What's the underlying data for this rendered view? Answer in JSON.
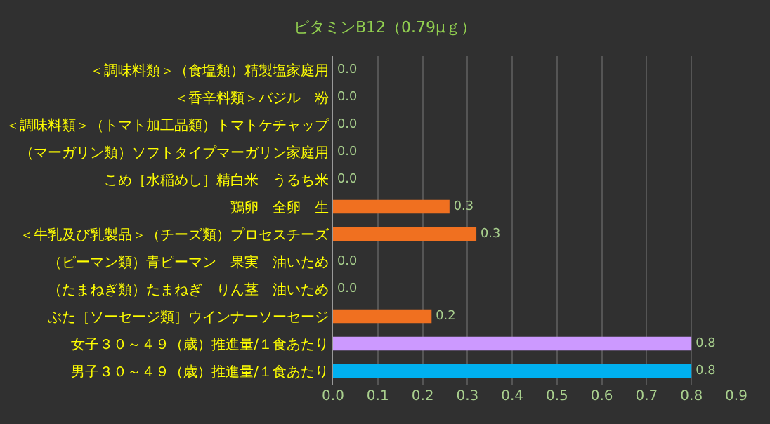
{
  "chart_data": {
    "type": "bar",
    "orientation": "horizontal",
    "title": "ビタミンB12（0.79μｇ）",
    "categories": [
      "＜調味料類＞（食塩類）精製塩家庭用",
      "＜香辛料類＞バジル　粉",
      "＜調味料類＞（トマト加工品類）トマトケチャップ",
      "（マーガリン類）ソフトタイプマーガリン家庭用",
      "こめ［水稲めし］精白米　うるち米",
      "鶏卵　全卵　生",
      "＜牛乳及び乳製品＞（チーズ類）プロセスチーズ",
      "（ピーマン類）青ピーマン　果実　油いため",
      "（たまねぎ類）たまねぎ　りん茎　油いため",
      "ぶた［ソーセージ類］ウインナーソーセージ",
      "女子３０～４９（歳）推進量/１食あたり",
      "男子３０～４９（歳）推進量/１食あたり"
    ],
    "values": [
      0,
      0,
      0,
      0,
      0,
      0.26,
      0.32,
      0,
      0,
      0.22,
      0.8,
      0.8
    ],
    "value_labels": [
      "0.0",
      "0.0",
      "0.0",
      "0.0",
      "0.0",
      "0.3",
      "0.3",
      "0.0",
      "0.0",
      "0.2",
      "0.8",
      "0.8"
    ],
    "colors": [
      "#f07020",
      "#f07020",
      "#f07020",
      "#f07020",
      "#f07020",
      "#f07020",
      "#f07020",
      "#f07020",
      "#f07020",
      "#f07020",
      "#cc99ff",
      "#00b0f0"
    ],
    "xlim": [
      0,
      0.9
    ],
    "xticks": [
      {
        "value": 0,
        "label": "0.0"
      },
      {
        "value": 0.1,
        "label": "0.1"
      },
      {
        "value": 0.2,
        "label": "0.2"
      },
      {
        "value": 0.3,
        "label": "0.3"
      },
      {
        "value": 0.4,
        "label": "0.4"
      },
      {
        "value": 0.5,
        "label": "0.5"
      },
      {
        "value": 0.6,
        "label": "0.6"
      },
      {
        "value": 0.7,
        "label": "0.7"
      },
      {
        "value": 0.8,
        "label": "0.8"
      },
      {
        "value": 0.9,
        "label": "0.9"
      }
    ],
    "grid": "x"
  }
}
